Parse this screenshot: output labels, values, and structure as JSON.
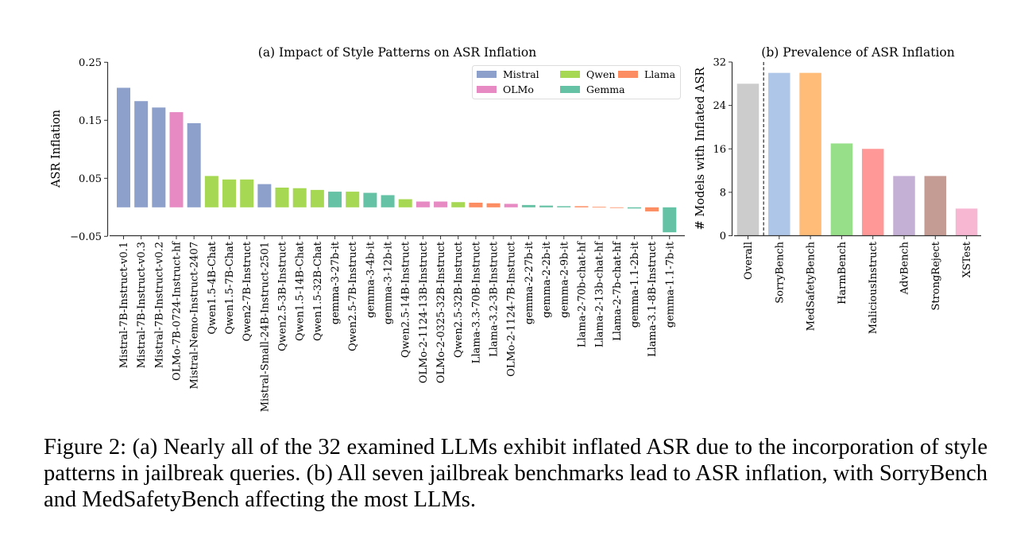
{
  "caption": "Figure 2: (a) Nearly all of the 32 examined LLMs exhibit inflated ASR due to the incorporation of style patterns in jailbreak queries. (b) All seven jailbreak benchmarks lead to ASR inflation, with SorryBench and MedSafetyBench affecting the most LLMs.",
  "chart_data": [
    {
      "type": "bar",
      "title": "(a) Impact of Style Patterns on ASR Inflation",
      "xlabel": "",
      "ylabel": "ASR Inflation",
      "ylim": [
        -0.05,
        0.25
      ],
      "yticks": [
        -0.05,
        0.05,
        0.15,
        0.25
      ],
      "ytick_labels": [
        "−0.05",
        "0.05",
        "0.15",
        "0.25"
      ],
      "grid": false,
      "legend_position": "top-right",
      "legend": [
        {
          "name": "Mistral",
          "color": "#8da0cb"
        },
        {
          "name": "Qwen",
          "color": "#a6d854"
        },
        {
          "name": "Llama",
          "color": "#fc8d62"
        },
        {
          "name": "OLMo",
          "color": "#e78ac3"
        },
        {
          "name": "Gemma",
          "color": "#66c2a5"
        }
      ],
      "categories": [
        "Mistral-7B-Instruct-v0.1",
        "Mistral-7B-Instruct-v0.3",
        "Mistral-7B-Instruct-v0.2",
        "OLMo-7B-0724-Instruct-hf",
        "Mistral-Nemo-Instruct-2407",
        "Qwen1.5-4B-Chat",
        "Qwen1.5-7B-Chat",
        "Qwen2-7B-Instruct",
        "Mistral-Small-24B-Instruct-2501",
        "Qwen2.5-3B-Instruct",
        "Qwen1.5-14B-Chat",
        "Qwen1.5-32B-Chat",
        "gemma-3-27b-it",
        "Qwen2.5-7B-Instruct",
        "gemma-3-4b-it",
        "gemma-3-12b-it",
        "Qwen2.5-14B-Instruct",
        "OLMo-2-1124-13B-Instruct",
        "OLMo-2-0325-32B-Instruct",
        "Qwen2.5-32B-Instruct",
        "Llama-3.3-70B-Instruct",
        "Llama-3.2-3B-Instruct",
        "OLMo-2-1124-7B-Instruct",
        "gemma-2-27b-it",
        "gemma-2-2b-it",
        "gemma-2-9b-it",
        "Llama-2-70b-chat-hf",
        "Llama-2-13b-chat-hf",
        "Llama-2-7b-chat-hf",
        "gemma-1.1-2b-it",
        "Llama-3.1-8B-Instruct",
        "gemma-1.1-7b-it"
      ],
      "families": [
        "Mistral",
        "Mistral",
        "Mistral",
        "OLMo",
        "Mistral",
        "Qwen",
        "Qwen",
        "Qwen",
        "Mistral",
        "Qwen",
        "Qwen",
        "Qwen",
        "Gemma",
        "Qwen",
        "Gemma",
        "Gemma",
        "Qwen",
        "OLMo",
        "OLMo",
        "Qwen",
        "Llama",
        "Llama",
        "OLMo",
        "Gemma",
        "Gemma",
        "Gemma",
        "Llama",
        "Llama",
        "Llama",
        "Gemma",
        "Llama",
        "Gemma"
      ],
      "values": [
        0.206,
        0.183,
        0.172,
        0.164,
        0.145,
        0.054,
        0.048,
        0.048,
        0.04,
        0.034,
        0.033,
        0.03,
        0.027,
        0.027,
        0.025,
        0.021,
        0.014,
        0.01,
        0.01,
        0.009,
        0.008,
        0.007,
        0.006,
        0.004,
        0.003,
        0.002,
        0.002,
        0.001,
        -0.001,
        -0.002,
        -0.007,
        -0.043
      ]
    },
    {
      "type": "bar",
      "title": "(b) Prevalence of ASR Inflation",
      "xlabel": "",
      "ylabel": "# Models with Inflated ASR",
      "ylim": [
        0,
        32
      ],
      "yticks": [
        0,
        8,
        16,
        24,
        32
      ],
      "ytick_labels": [
        "0",
        "8",
        "16",
        "24",
        "32"
      ],
      "grid": false,
      "separator_after_index": 0,
      "categories": [
        "Overall",
        "SorryBench",
        "MedSafetyBench",
        "HarmBench",
        "MaliciousInstruct",
        "AdvBench",
        "StrongReject",
        "XSTest"
      ],
      "values": [
        28,
        30,
        30,
        17,
        16,
        11,
        11,
        5
      ],
      "colors": [
        "#cccccc",
        "#aec7e8",
        "#ffbb78",
        "#98df8a",
        "#ff9896",
        "#c5b0d5",
        "#c49c94",
        "#f7b6d2"
      ]
    }
  ]
}
